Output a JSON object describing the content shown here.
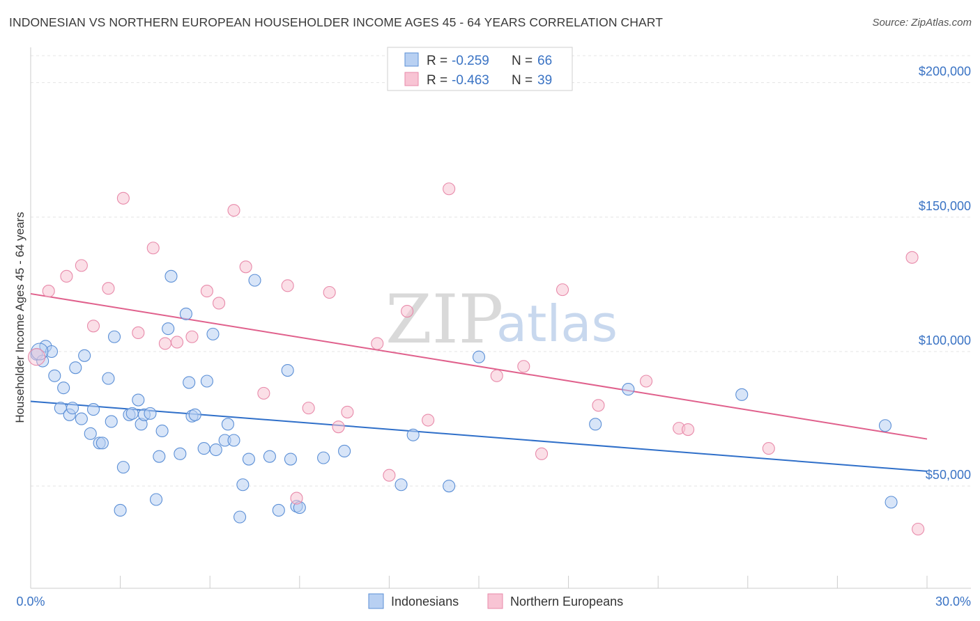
{
  "header": {
    "title": "INDONESIAN VS NORTHERN EUROPEAN HOUSEHOLDER INCOME AGES 45 - 64 YEARS CORRELATION CHART",
    "source": "Source: ZipAtlas.com"
  },
  "watermark": {
    "zip": "ZIP",
    "atlas": "atlas"
  },
  "chart_data": {
    "type": "scatter",
    "ylabel": "Householder Income Ages 45 - 64 years",
    "xlim": [
      0,
      30
    ],
    "ylim": [
      12000,
      210000
    ],
    "x_tick_labels": [
      "0.0%",
      "30.0%"
    ],
    "y_ticks": [
      {
        "value": 50000,
        "label": "$50,000"
      },
      {
        "value": 100000,
        "label": "$100,000"
      },
      {
        "value": 150000,
        "label": "$150,000"
      },
      {
        "value": 200000,
        "label": "$200,000"
      }
    ],
    "grid": "horizontal dashed",
    "legend_placement": "top-center",
    "legend": [
      {
        "r_label": "R =",
        "r_value": "-0.259",
        "n_label": "N =",
        "n_value": "66"
      },
      {
        "r_label": "R =",
        "r_value": "-0.463",
        "n_label": "N =",
        "n_value": "39"
      }
    ],
    "series": [
      {
        "name": "Indonesians",
        "color": "#5b8fd6",
        "fill": "#b8d0f2",
        "trend": {
          "x": [
            0,
            30
          ],
          "y": [
            81500,
            55500
          ],
          "color": "#2f6fc9"
        },
        "points": [
          [
            0.2,
            99000
          ],
          [
            0.4,
            96500
          ],
          [
            0.5,
            102000
          ],
          [
            0.7,
            100000
          ],
          [
            0.8,
            91000
          ],
          [
            1.1,
            86500
          ],
          [
            1.0,
            79000
          ],
          [
            1.3,
            76500
          ],
          [
            1.4,
            79000
          ],
          [
            1.5,
            94000
          ],
          [
            1.7,
            75000
          ],
          [
            1.8,
            98500
          ],
          [
            2.0,
            69500
          ],
          [
            2.1,
            78500
          ],
          [
            2.3,
            66000
          ],
          [
            2.4,
            66000
          ],
          [
            2.6,
            90000
          ],
          [
            2.7,
            74000
          ],
          [
            2.8,
            105500
          ],
          [
            3.0,
            41000
          ],
          [
            3.1,
            57000
          ],
          [
            3.3,
            76500
          ],
          [
            3.4,
            77000
          ],
          [
            3.6,
            82000
          ],
          [
            3.7,
            73000
          ],
          [
            3.8,
            76500
          ],
          [
            4.0,
            77000
          ],
          [
            4.2,
            45000
          ],
          [
            4.3,
            61000
          ],
          [
            4.4,
            70500
          ],
          [
            4.6,
            108500
          ],
          [
            4.7,
            128000
          ],
          [
            5.0,
            62000
          ],
          [
            5.2,
            114000
          ],
          [
            5.3,
            88500
          ],
          [
            5.4,
            76000
          ],
          [
            5.5,
            76500
          ],
          [
            5.8,
            64000
          ],
          [
            5.9,
            89000
          ],
          [
            6.1,
            106500
          ],
          [
            6.2,
            63500
          ],
          [
            6.5,
            67000
          ],
          [
            6.6,
            73000
          ],
          [
            6.8,
            67000
          ],
          [
            7.0,
            38500
          ],
          [
            7.1,
            50500
          ],
          [
            7.3,
            60000
          ],
          [
            7.5,
            126500
          ],
          [
            8.0,
            61000
          ],
          [
            8.3,
            41000
          ],
          [
            8.6,
            93000
          ],
          [
            8.7,
            60000
          ],
          [
            8.9,
            42500
          ],
          [
            9.0,
            42000
          ],
          [
            9.8,
            60500
          ],
          [
            10.5,
            63000
          ],
          [
            12.4,
            50500
          ],
          [
            12.8,
            69000
          ],
          [
            14.0,
            50000
          ],
          [
            15.0,
            98000
          ],
          [
            18.9,
            73000
          ],
          [
            20.0,
            86000
          ],
          [
            23.8,
            84000
          ],
          [
            28.6,
            72500
          ],
          [
            28.8,
            44000
          ],
          [
            0.3,
            100000
          ]
        ]
      },
      {
        "name": "Northern Europeans",
        "color": "#e88aaa",
        "fill": "#f8c4d4",
        "trend": {
          "x": [
            0,
            30
          ],
          "y": [
            121500,
            67500
          ],
          "color": "#e0608c"
        },
        "points": [
          [
            0.2,
            98000
          ],
          [
            0.6,
            122500
          ],
          [
            1.2,
            128000
          ],
          [
            1.7,
            132000
          ],
          [
            2.1,
            109500
          ],
          [
            2.6,
            123500
          ],
          [
            3.1,
            157000
          ],
          [
            3.6,
            107000
          ],
          [
            4.1,
            138500
          ],
          [
            4.5,
            103000
          ],
          [
            4.9,
            103500
          ],
          [
            5.4,
            105500
          ],
          [
            5.9,
            122500
          ],
          [
            6.3,
            118000
          ],
          [
            6.8,
            152500
          ],
          [
            7.2,
            131500
          ],
          [
            7.8,
            84500
          ],
          [
            8.6,
            124500
          ],
          [
            8.9,
            45500
          ],
          [
            9.3,
            79000
          ],
          [
            10.0,
            122000
          ],
          [
            10.3,
            72000
          ],
          [
            10.6,
            77500
          ],
          [
            11.6,
            103000
          ],
          [
            12.0,
            54000
          ],
          [
            12.6,
            115000
          ],
          [
            13.3,
            74500
          ],
          [
            14.0,
            160500
          ],
          [
            15.6,
            91000
          ],
          [
            16.5,
            94500
          ],
          [
            17.1,
            62000
          ],
          [
            17.8,
            123000
          ],
          [
            19.0,
            80000
          ],
          [
            20.6,
            89000
          ],
          [
            21.7,
            71500
          ],
          [
            22.0,
            71000
          ],
          [
            24.7,
            64000
          ],
          [
            29.5,
            135000
          ],
          [
            29.7,
            34000
          ]
        ]
      }
    ]
  },
  "bottom_legend": {
    "items": [
      {
        "label": "Indonesians"
      },
      {
        "label": "Northern Europeans"
      }
    ]
  }
}
